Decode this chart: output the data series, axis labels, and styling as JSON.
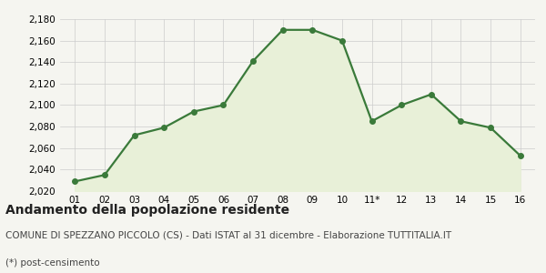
{
  "x_labels": [
    "01",
    "02",
    "03",
    "04",
    "05",
    "06",
    "07",
    "08",
    "09",
    "10",
    "11*",
    "12",
    "13",
    "14",
    "15",
    "16"
  ],
  "y_values": [
    2029,
    2035,
    2072,
    2079,
    2094,
    2100,
    2141,
    2170,
    2170,
    2160,
    2085,
    2100,
    2110,
    2085,
    2079,
    2053
  ],
  "ylim": [
    2020,
    2180
  ],
  "yticks": [
    2020,
    2040,
    2060,
    2080,
    2100,
    2120,
    2140,
    2160,
    2180
  ],
  "line_color": "#3a7a3a",
  "fill_color": "#e8f0d8",
  "marker": "o",
  "marker_size": 4,
  "line_width": 1.6,
  "title": "Andamento della popolazione residente",
  "subtitle": "COMUNE DI SPEZZANO PICCOLO (CS) - Dati ISTAT al 31 dicembre - Elaborazione TUTTITALIA.IT",
  "footnote": "(*) post-censimento",
  "bg_color": "#f5f5f0",
  "grid_color": "#cccccc",
  "title_fontsize": 10,
  "subtitle_fontsize": 7.5,
  "footnote_fontsize": 7.5,
  "tick_fontsize": 7.5
}
